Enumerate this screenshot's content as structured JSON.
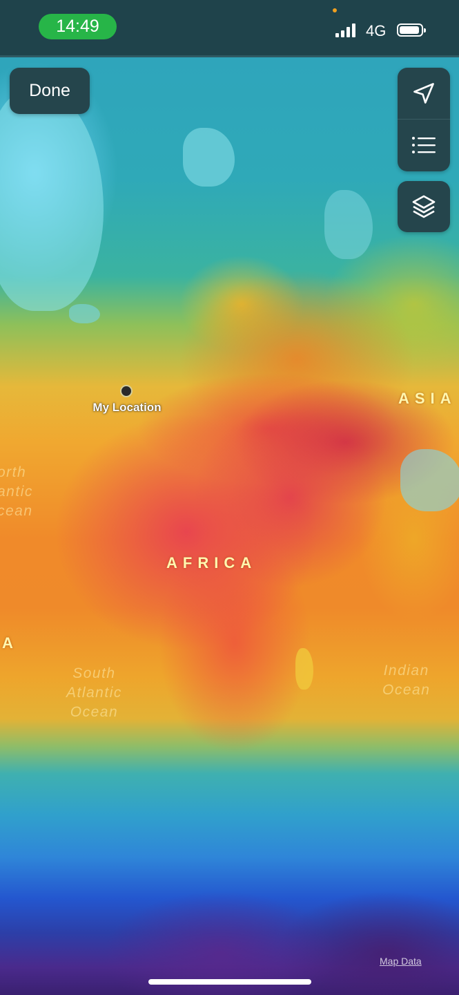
{
  "status_bar": {
    "time": "14:49",
    "network": "4G",
    "signal_bars": 4,
    "battery_level_percent": 80,
    "clock_pill_color": "#27b548"
  },
  "controls": {
    "done_label": "Done",
    "location_icon": "location-arrow-icon",
    "list_icon": "list-icon",
    "layers_icon": "layers-icon"
  },
  "map": {
    "my_location_label": "My Location",
    "continents": [
      "AFRICA",
      "ASIA"
    ],
    "partial_continent": "A",
    "oceans": {
      "north_atlantic": "orth\nantic\ncean",
      "south_atlantic": "South\nAtlantic\nOcean",
      "indian": "Indian\nOcean"
    },
    "map_data_link": "Map Data"
  },
  "colors": {
    "panel_bg": "#25454c",
    "hot": "#e8424f",
    "warm": "#f0a830",
    "cool": "#2fa3bd",
    "cold": "#2457cf"
  }
}
